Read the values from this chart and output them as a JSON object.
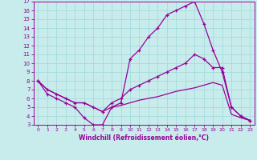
{
  "xlabel": "Windchill (Refroidissement éolien,°C)",
  "bg_color": "#c8ecec",
  "grid_color": "#aadddd",
  "line_color": "#990099",
  "xlim": [
    -0.5,
    23.5
  ],
  "ylim": [
    3,
    17
  ],
  "xticks": [
    0,
    1,
    2,
    3,
    4,
    5,
    6,
    7,
    8,
    9,
    10,
    11,
    12,
    13,
    14,
    15,
    16,
    17,
    18,
    19,
    20,
    21,
    22,
    23
  ],
  "yticks": [
    3,
    4,
    5,
    6,
    7,
    8,
    9,
    10,
    11,
    12,
    13,
    14,
    15,
    16,
    17
  ],
  "line1_x": [
    0,
    1,
    2,
    3,
    4,
    5,
    6,
    7,
    8,
    9,
    10,
    11,
    12,
    13,
    14,
    15,
    16,
    17,
    18,
    19,
    20,
    21,
    22,
    23
  ],
  "line1_y": [
    8,
    6.5,
    6.0,
    5.5,
    5.0,
    3.8,
    3.0,
    3.0,
    5.0,
    5.5,
    10.5,
    11.5,
    13.0,
    14.0,
    15.5,
    16.0,
    16.5,
    17.0,
    14.5,
    11.5,
    9.0,
    5.0,
    4.0,
    3.5
  ],
  "line2_x": [
    0,
    1,
    2,
    3,
    4,
    5,
    6,
    7,
    8,
    9,
    10,
    11,
    12,
    13,
    14,
    15,
    16,
    17,
    18,
    19,
    20,
    21,
    22,
    23
  ],
  "line2_y": [
    8,
    7.0,
    6.5,
    6.0,
    5.5,
    5.5,
    5.0,
    4.5,
    5.5,
    6.0,
    7.0,
    7.5,
    8.0,
    8.5,
    9.0,
    9.5,
    10.0,
    11.0,
    10.5,
    9.5,
    9.5,
    5.0,
    4.0,
    3.5
  ],
  "line3_x": [
    0,
    1,
    2,
    3,
    4,
    5,
    6,
    7,
    8,
    9,
    10,
    11,
    12,
    13,
    14,
    15,
    16,
    17,
    18,
    19,
    20,
    21,
    22,
    23
  ],
  "line3_y": [
    8,
    7.0,
    6.5,
    6.0,
    5.5,
    5.5,
    5.0,
    4.5,
    5.0,
    5.2,
    5.5,
    5.8,
    6.0,
    6.2,
    6.5,
    6.8,
    7.0,
    7.2,
    7.5,
    7.8,
    7.5,
    4.2,
    3.8,
    3.5
  ]
}
